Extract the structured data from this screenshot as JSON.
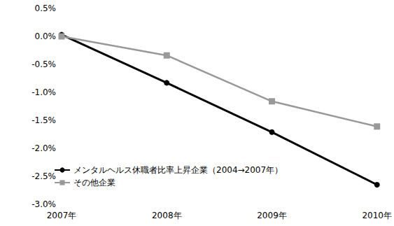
{
  "chart_data": {
    "type": "line",
    "categories": [
      "2007年",
      "2008年",
      "2009年",
      "2010年"
    ],
    "series": [
      {
        "name": "メンタルヘルス休職者比率上昇企業（2004→2007年）",
        "color": "#000000",
        "marker": "circle",
        "line_style": "solid",
        "values": [
          0.03,
          -0.83,
          -1.71,
          -2.65
        ]
      },
      {
        "name": "その他企業",
        "color": "#999999",
        "marker": "square",
        "line_style": "solid",
        "values": [
          0.0,
          -0.34,
          -1.16,
          -1.61
        ]
      }
    ],
    "ylim": [
      -3.0,
      0.5
    ],
    "yticks": [
      {
        "value": -3.0,
        "label": "-3.0%"
      },
      {
        "value": -2.5,
        "label": "-2.5%"
      },
      {
        "value": -2.0,
        "label": "-2.0%"
      },
      {
        "value": -1.5,
        "label": "-1.5%"
      },
      {
        "value": -1.0,
        "label": "-1.0%"
      },
      {
        "value": -0.5,
        "label": "-0.5%"
      },
      {
        "value": 0.0,
        "label": "0.0%"
      },
      {
        "value": 0.5,
        "label": "0.5%"
      }
    ],
    "grid": false,
    "legend": "lower left"
  }
}
